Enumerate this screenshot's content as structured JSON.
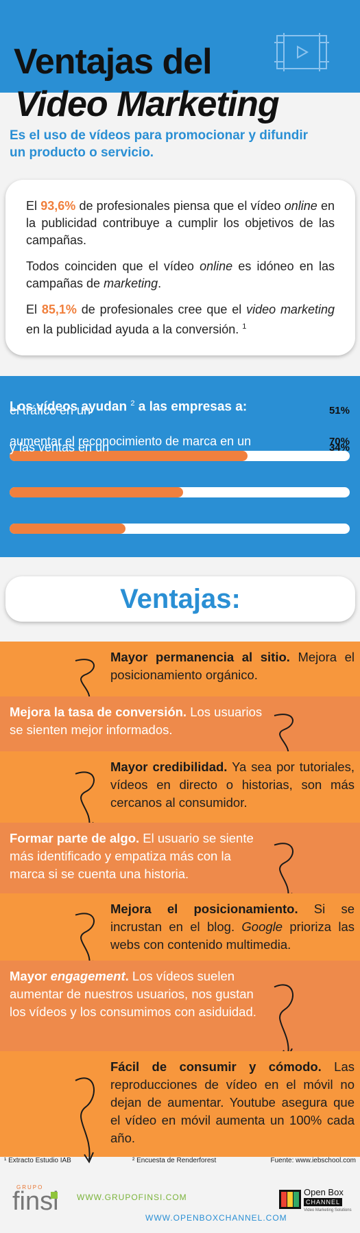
{
  "header": {
    "title_line1": "Ventajas del",
    "title_line2": "Video Marketing",
    "subtitle": "Es el uso de vídeos para promocionar y difundir un producto o servicio."
  },
  "intro": {
    "paragraphs": [
      [
        "El",
        "93,6%",
        "de profesionales piensa que el vídeo",
        "online",
        "en la publicidad contribuye a cumplir los objetivos de las campañas."
      ],
      [
        "Todos coinciden que el vídeo",
        "online",
        "es idóneo en las campañas de",
        "marketing",
        "."
      ],
      [
        "El",
        "85,1%",
        "de profesionales cree que el",
        "video marketing",
        "en la publicidad ayuda a la conversión.",
        "1"
      ]
    ]
  },
  "stats": {
    "heading": [
      "Los vídeos ayudan",
      "2",
      "a las empresas a:"
    ],
    "xlim": [
      0,
      100
    ],
    "items": [
      {
        "label": "aumentar el reconocimiento de marca en un",
        "value": 70,
        "value_label": "70%"
      },
      {
        "label": "el tráfico en un",
        "value": 51,
        "value_label": "51%"
      },
      {
        "label": "y las ventas en un",
        "value": 34,
        "value_label": "34%"
      }
    ]
  },
  "advantages": {
    "heading": "Ventajas:",
    "items": [
      {
        "title": [
          "Mayor permanencia al sitio."
        ],
        "text": [
          "Mejora el posicionamiento orgánico."
        ]
      },
      {
        "title": [
          "Mejora la tasa de conversión."
        ],
        "text": [
          "Los usuarios se sienten mejor informados."
        ]
      },
      {
        "title": [
          "Mayor credibilidad."
        ],
        "text": [
          "Ya sea por tutoriales, vídeos en directo o historias, son más cercanos al consumidor."
        ]
      },
      {
        "title": [
          "Formar parte de algo."
        ],
        "text": [
          "El usuario se siente más identificado y empatiza más con la marca si se cuenta una historia."
        ]
      },
      {
        "title": [
          "Mejora el posicionamiento."
        ],
        "text": [
          "Si se incrustan en el blog.",
          "Google",
          "prioriza las webs con contenido multimedia."
        ]
      },
      {
        "title": [
          "Mayor",
          "engagement",
          "."
        ],
        "text": [
          "Los vídeos suelen aumentar de nuestros usuarios, nos gustan los vídeos y los consumimos con asiduidad."
        ]
      },
      {
        "title": [
          "Fácil de consumir y cómodo."
        ],
        "text": [
          "Las reproducciones de vídeo en el móvil no dejan de aumentar. Youtube asegura que el vídeo en móvil aumenta un 100% cada año."
        ]
      }
    ]
  },
  "footer": {
    "notes": [
      "¹ Extracto Estudio IAB",
      "² Encuesta de Renderforest",
      "Fuente: www.iebschool.com"
    ],
    "logo_left": {
      "small": "GRUPO",
      "name": "finsi"
    },
    "urls": [
      "WWW.GRUPOFINSI.COM",
      "WWW.OPENBOXCHANNEL.COM"
    ],
    "logo_right": {
      "name": "Open Box",
      "badge": "CHANNEL",
      "tagline": "Video Marketing Solutions"
    }
  }
}
